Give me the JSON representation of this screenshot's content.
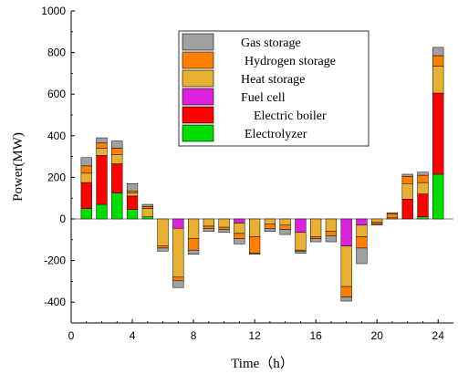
{
  "chart_data": {
    "type": "bar",
    "stacked": true,
    "xlabel": "Time（h）",
    "ylabel": "Power(MW)",
    "xlim": [
      0,
      25
    ],
    "ylim": [
      -500,
      1000
    ],
    "xticks": [
      0,
      4,
      8,
      12,
      16,
      20,
      24
    ],
    "yticks": [
      -400,
      -200,
      0,
      200,
      400,
      600,
      800,
      1000
    ],
    "legend_position": "top-center",
    "x": [
      1,
      2,
      3,
      4,
      5,
      6,
      7,
      8,
      9,
      10,
      11,
      12,
      13,
      14,
      15,
      16,
      17,
      18,
      19,
      20,
      21,
      22,
      23,
      24
    ],
    "series": [
      {
        "name": "Electrolyzer",
        "color": "#00dd00",
        "values": [
          50,
          70,
          125,
          45,
          10,
          0,
          0,
          0,
          0,
          0,
          0,
          0,
          0,
          0,
          0,
          0,
          0,
          0,
          0,
          0,
          0,
          0,
          10,
          215
        ]
      },
      {
        "name": "Electric boiler",
        "color": "#ff0000",
        "values": [
          125,
          235,
          140,
          65,
          0,
          0,
          0,
          0,
          0,
          0,
          0,
          0,
          0,
          0,
          0,
          0,
          0,
          0,
          0,
          0,
          0,
          95,
          110,
          390
        ]
      },
      {
        "name": "Fuel cell",
        "color": "#dd22dd",
        "values": [
          0,
          0,
          0,
          0,
          0,
          0,
          -45,
          0,
          0,
          0,
          -20,
          0,
          0,
          0,
          -65,
          0,
          0,
          -130,
          -30,
          0,
          0,
          0,
          0,
          0
        ]
      },
      {
        "name": "Heat storage",
        "color": "#e8b030",
        "values": [
          45,
          35,
          45,
          15,
          40,
          -130,
          -235,
          -95,
          -35,
          -40,
          -50,
          -85,
          -25,
          -30,
          -85,
          -85,
          -60,
          -195,
          -55,
          -15,
          5,
          75,
          55,
          130
        ]
      },
      {
        "name": "Hydrogen storage",
        "color": "#ff8000",
        "values": [
          35,
          25,
          30,
          10,
          10,
          -10,
          -15,
          -55,
          -10,
          -10,
          -25,
          -80,
          -20,
          -20,
          -5,
          -10,
          -20,
          -50,
          -55,
          -10,
          20,
          35,
          35,
          50
        ]
      },
      {
        "name": "Gas storage",
        "color": "#a0a0a0",
        "values": [
          40,
          25,
          35,
          35,
          10,
          -15,
          -35,
          -20,
          -15,
          -15,
          -25,
          -5,
          -15,
          -25,
          -10,
          -15,
          -30,
          -20,
          -75,
          -5,
          5,
          10,
          15,
          40
        ]
      }
    ]
  }
}
